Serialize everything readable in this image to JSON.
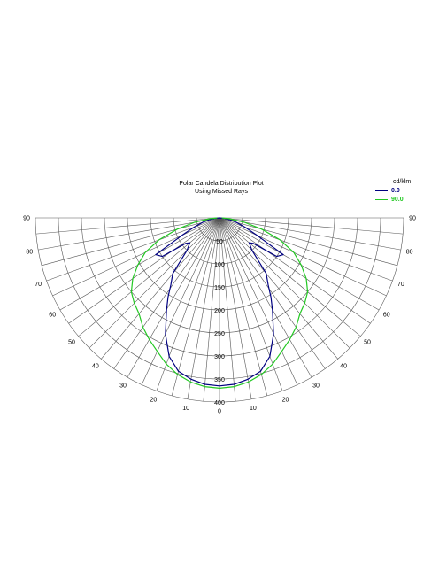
{
  "chart_data": {
    "type": "polar",
    "title": "Polar Candela Distribution Plot",
    "subtitle": "Using Missed Rays",
    "unit_label": "cd/klm",
    "radial_ticks": [
      50,
      100,
      150,
      200,
      250,
      300,
      350,
      400
    ],
    "radial_range": [
      0,
      400
    ],
    "angle_ticks_left": [
      90,
      80,
      70,
      60,
      50,
      40,
      30,
      20,
      10,
      0
    ],
    "angle_ticks_right": [
      10,
      20,
      30,
      40,
      50,
      60,
      70,
      80,
      90
    ],
    "angle_range": [
      0,
      90
    ],
    "grid": true,
    "legend_position": "top-right",
    "series": [
      {
        "name": "0.0",
        "color": "#000080",
        "angles": [
          0,
          5,
          10,
          15,
          20,
          25,
          30,
          33,
          36,
          40,
          45,
          50,
          53,
          56,
          60,
          65,
          70,
          75,
          80,
          85,
          90
        ],
        "values": [
          365,
          363,
          356,
          345,
          320,
          278,
          230,
          205,
          180,
          158,
          100,
          84,
          92,
          150,
          160,
          90,
          58,
          38,
          22,
          10,
          0
        ]
      },
      {
        "name": "90.0",
        "color": "#22c822",
        "angles": [
          0,
          5,
          10,
          15,
          20,
          25,
          30,
          35,
          40,
          45,
          50,
          55,
          60,
          65,
          70,
          75,
          80,
          85,
          90
        ],
        "values": [
          370,
          368,
          362,
          352,
          338,
          320,
          305,
          290,
          272,
          262,
          250,
          230,
          205,
          178,
          140,
          95,
          55,
          22,
          5
        ]
      }
    ]
  }
}
